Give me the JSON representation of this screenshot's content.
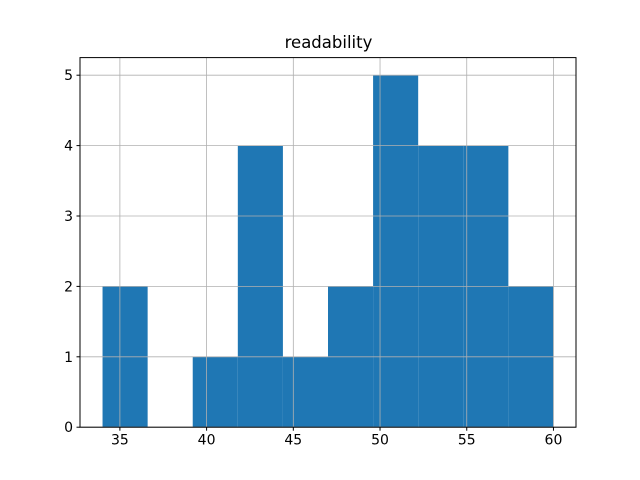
{
  "chart_data": {
    "type": "bar",
    "subtype": "histogram",
    "title": "readability",
    "xlabel": "",
    "ylabel": "",
    "bin_edges": [
      34.0,
      36.6,
      39.2,
      41.8,
      44.4,
      47.0,
      49.6,
      52.2,
      54.8,
      57.4,
      60.0
    ],
    "counts": [
      2,
      0,
      1,
      4,
      1,
      2,
      5,
      4,
      4,
      2
    ],
    "xticks": [
      35,
      40,
      45,
      50,
      55,
      60
    ],
    "yticks": [
      0,
      1,
      2,
      3,
      4,
      5
    ],
    "xlim": [
      32.7,
      61.3
    ],
    "ylim": [
      0,
      5.25
    ],
    "grid": true,
    "grid_above_bars": true,
    "legend": null,
    "bar_color": "#1f77b4",
    "grid_color": "#b0b0b0",
    "spine_color": "#000000",
    "text_color": "#000000",
    "background_color": "#ffffff"
  }
}
